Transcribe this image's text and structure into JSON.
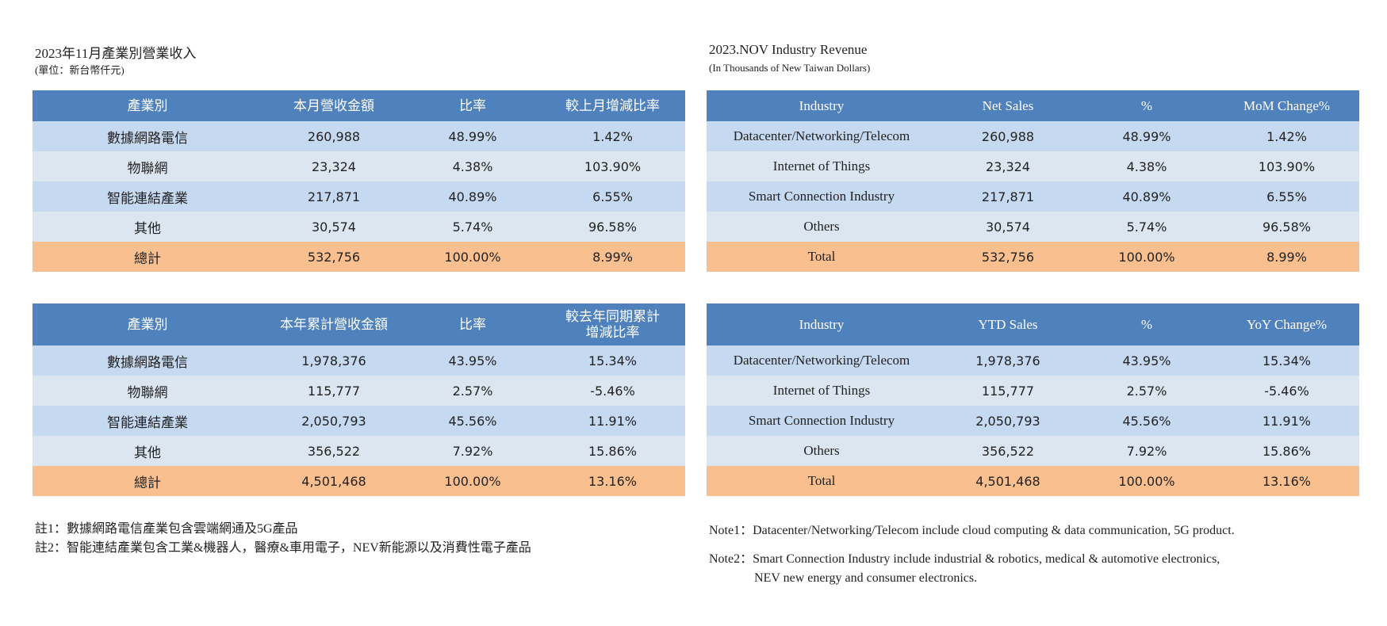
{
  "left": {
    "title": "2023年11月產業別營業收入",
    "unit": "(單位：新台幣仟元)",
    "monthly": {
      "headers": [
        "產業別",
        "本月營收金額",
        "比率",
        "較上月增減比率"
      ],
      "rows": [
        [
          "數據網路電信",
          "260,988",
          "48.99%",
          "1.42%"
        ],
        [
          "物聯網",
          "23,324",
          "4.38%",
          "103.90%"
        ],
        [
          "智能連結產業",
          "217,871",
          "40.89%",
          "6.55%"
        ],
        [
          "其他",
          "30,574",
          "5.74%",
          "96.58%"
        ]
      ],
      "total": [
        "總計",
        "532,756",
        "100.00%",
        "8.99%"
      ]
    },
    "ytd": {
      "headers": [
        "產業別",
        "本年累計營收金額",
        "比率",
        "較去年同期累計",
        "增減比率"
      ],
      "rows": [
        [
          "數據網路電信",
          "1,978,376",
          "43.95%",
          "15.34%"
        ],
        [
          "物聯網",
          "115,777",
          "2.57%",
          "-5.46%"
        ],
        [
          "智能連結產業",
          "2,050,793",
          "45.56%",
          "11.91%"
        ],
        [
          "其他",
          "356,522",
          "7.92%",
          "15.86%"
        ]
      ],
      "total": [
        "總計",
        "4,501,468",
        "100.00%",
        "13.16%"
      ]
    },
    "notes": [
      "註1：數據網路電信產業包含雲端網通及5G產品",
      "註2：智能連結產業包含工業&機器人，醫療&車用電子，NEV新能源以及消費性電子產品"
    ]
  },
  "right": {
    "title": "2023.NOV Industry Revenue",
    "unit": "(In Thousands of New Taiwan Dollars)",
    "monthly": {
      "headers": [
        "Industry",
        "Net Sales",
        "%",
        "MoM Change%"
      ],
      "rows": [
        [
          "Datacenter/Networking/Telecom",
          "260,988",
          "48.99%",
          "1.42%"
        ],
        [
          "Internet of Things",
          "23,324",
          "4.38%",
          "103.90%"
        ],
        [
          "Smart Connection Industry",
          "217,871",
          "40.89%",
          "6.55%"
        ],
        [
          "Others",
          "30,574",
          "5.74%",
          "96.58%"
        ]
      ],
      "total": [
        "Total",
        "532,756",
        "100.00%",
        "8.99%"
      ]
    },
    "ytd": {
      "headers": [
        "Industry",
        "YTD Sales",
        "%",
        "YoY Change%"
      ],
      "rows": [
        [
          "Datacenter/Networking/Telecom",
          "1,978,376",
          "43.95%",
          "15.34%"
        ],
        [
          "Internet of Things",
          "115,777",
          "2.57%",
          "-5.46%"
        ],
        [
          "Smart Connection Industry",
          "2,050,793",
          "45.56%",
          "11.91%"
        ],
        [
          "Others",
          "356,522",
          "7.92%",
          "15.86%"
        ]
      ],
      "total": [
        "Total",
        "4,501,468",
        "100.00%",
        "13.16%"
      ]
    },
    "notes": [
      "Note1：Datacenter/Networking/Telecom include cloud computing & data communication, 5G product.",
      "Note2：Smart Connection Industry include industrial & robotics, medical & automotive electronics,",
      "NEV new energy and consumer electronics."
    ]
  }
}
